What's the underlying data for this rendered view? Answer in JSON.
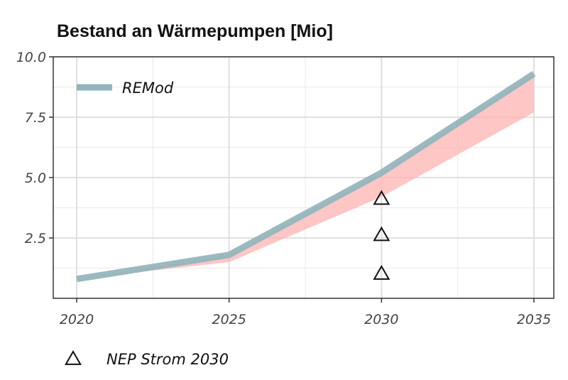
{
  "chart_data": {
    "type": "line",
    "title": "Bestand an Wärmepumpen [Mio]",
    "xlabel": "",
    "ylabel": "",
    "xlim": [
      2020,
      2035
    ],
    "ylim": [
      0.0,
      10.0
    ],
    "x_ticks": [
      "2020",
      "2025",
      "2030",
      "2035"
    ],
    "y_ticks": [
      "2.5",
      "5.0",
      "7.5",
      "10.0"
    ],
    "grid": true,
    "legend_placement": "top-left",
    "series": [
      {
        "name": "REMod",
        "x": [
          2020,
          2025,
          2030,
          2035
        ],
        "y": [
          0.8,
          1.8,
          5.2,
          9.3
        ],
        "color": "#93b4bb"
      }
    ],
    "band": {
      "x": [
        2020,
        2025,
        2030,
        2035
      ],
      "upper": [
        0.8,
        1.8,
        5.2,
        9.3
      ],
      "lower": [
        0.8,
        1.5,
        4.2,
        7.7
      ],
      "color": "#ffb3b3"
    },
    "markers": {
      "name": "NEP Strom 2030",
      "x": [
        2030,
        2030,
        2030
      ],
      "y": [
        1.0,
        2.6,
        4.1
      ],
      "symbol": "triangle-open"
    }
  }
}
